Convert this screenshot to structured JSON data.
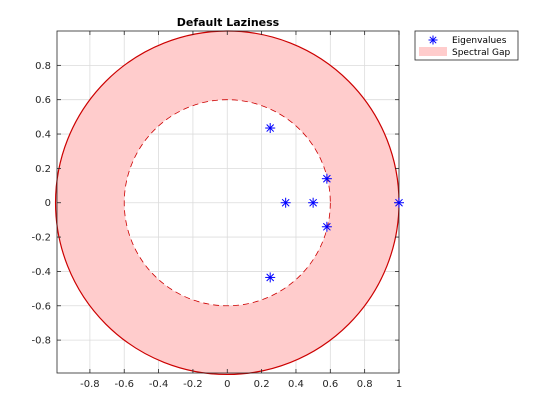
{
  "chart_data": {
    "type": "scatter",
    "title": "Default Laziness",
    "xlabel": "",
    "ylabel": "",
    "xlim": [
      -0.9915,
      1.0
    ],
    "ylim": [
      -0.9915,
      1.0
    ],
    "xticks": [
      -0.8,
      -0.6,
      -0.4,
      -0.2,
      0,
      0.2,
      0.4,
      0.6,
      0.8,
      1
    ],
    "yticks": [
      -0.8,
      -0.6,
      -0.4,
      -0.2,
      0,
      0.2,
      0.4,
      0.6,
      0.8
    ],
    "xtick_labels": [
      "-0.8",
      "-0.6",
      "-0.4",
      "-0.2",
      "0",
      "0.2",
      "0.4",
      "0.6",
      "0.8",
      "1"
    ],
    "ytick_labels": [
      "-0.8",
      "-0.6",
      "-0.4",
      "-0.2",
      "0",
      "0.2",
      "0.4",
      "0.6",
      "0.8"
    ],
    "grid": true,
    "legend_position": "outside-top-right",
    "series": [
      {
        "name": "Eigenvalues",
        "marker": "asterisk",
        "color": "#0000ff",
        "points": [
          {
            "x": 1.0,
            "y": 0.0
          },
          {
            "x": 0.5,
            "y": 0.0
          },
          {
            "x": 0.34,
            "y": 0.0
          },
          {
            "x": 0.58,
            "y": 0.14
          },
          {
            "x": 0.58,
            "y": -0.14
          },
          {
            "x": 0.25,
            "y": 0.435
          },
          {
            "x": 0.25,
            "y": -0.435
          }
        ]
      },
      {
        "name": "Spectral Gap",
        "kind": "annulus",
        "center": [
          0,
          0
        ],
        "outer_radius": 1.0,
        "inner_radius": 0.6,
        "fill_color": "#ffcccc",
        "edge_color": "#cc0000",
        "outer_edge_style": "solid",
        "inner_edge_style": "dashed"
      }
    ]
  }
}
